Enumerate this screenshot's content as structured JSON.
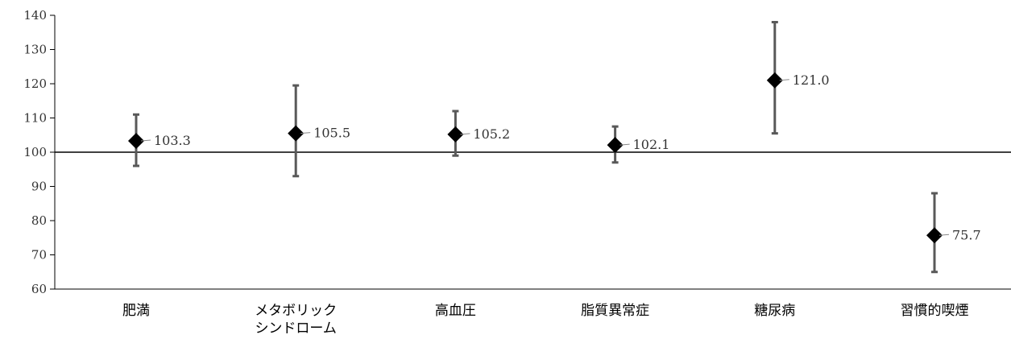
{
  "chart_data": {
    "type": "scatter",
    "title": "",
    "xlabel": "",
    "ylabel": "",
    "ylim": [
      60,
      140
    ],
    "yticks": [
      60,
      70,
      80,
      90,
      100,
      110,
      120,
      130,
      140
    ],
    "reference_line": 100,
    "grid": false,
    "categories": [
      [
        "肥満"
      ],
      [
        "メタボリック",
        "シンドローム"
      ],
      [
        "高血圧"
      ],
      [
        "脂質異常症"
      ],
      [
        "糖尿病"
      ],
      [
        "習慣的喫煙"
      ]
    ],
    "values": [
      103.3,
      105.5,
      105.2,
      102.1,
      121.0,
      75.7
    ],
    "value_labels": [
      "103.3",
      "105.5",
      "105.2",
      "102.1",
      "121.0",
      "75.7"
    ],
    "lower": [
      96.0,
      93.0,
      99.0,
      97.0,
      105.5,
      65.0
    ],
    "upper": [
      111.0,
      119.5,
      112.0,
      107.5,
      138.0,
      88.0
    ],
    "colors": {
      "marker": "#000000",
      "error_bar": "#595959",
      "axis": "#000000",
      "label": "#333333"
    }
  }
}
